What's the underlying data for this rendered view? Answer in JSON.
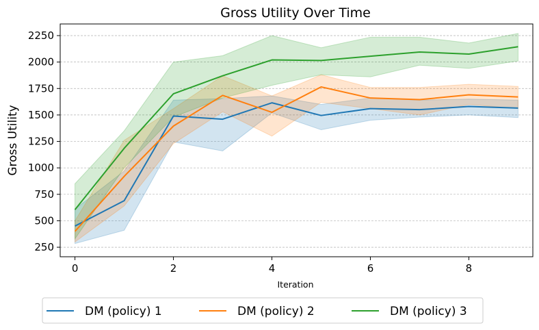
{
  "chart_data": {
    "type": "line",
    "title": "Gross Utility Over Time",
    "xlabel": "Iteration",
    "ylabel": "Gross Utility",
    "x": [
      0,
      1,
      2,
      3,
      4,
      5,
      6,
      7,
      8,
      9
    ],
    "xlim": [
      -0.3,
      9.3
    ],
    "ylim": [
      160,
      2360
    ],
    "xticks": [
      0,
      2,
      4,
      6,
      8
    ],
    "yticks": [
      250,
      500,
      750,
      1000,
      1250,
      1500,
      1750,
      2000,
      2250
    ],
    "grid": "horizontal dashed",
    "legend_placement": "bottom-center",
    "series": [
      {
        "name": "DM (policy) 1",
        "color": "#1f77b4",
        "values": [
          450,
          690,
          1490,
          1460,
          1615,
          1495,
          1560,
          1550,
          1580,
          1565
        ],
        "lower": [
          285,
          410,
          1245,
          1160,
          1520,
          1360,
          1450,
          1480,
          1500,
          1475
        ],
        "upper": [
          610,
          970,
          1640,
          1655,
          1680,
          1600,
          1660,
          1640,
          1650,
          1640
        ]
      },
      {
        "name": "DM (policy) 2",
        "color": "#ff7f0e",
        "values": [
          400,
          920,
          1395,
          1685,
          1525,
          1765,
          1660,
          1645,
          1690,
          1670
        ],
        "lower": [
          300,
          640,
          1230,
          1530,
          1300,
          1620,
          1560,
          1500,
          1600,
          1560
        ],
        "upper": [
          500,
          1260,
          1560,
          1870,
          1680,
          1880,
          1760,
          1760,
          1790,
          1770
        ]
      },
      {
        "name": "DM (policy) 3",
        "color": "#2ca02c",
        "values": [
          605,
          1185,
          1700,
          1870,
          2020,
          2015,
          2055,
          2095,
          2075,
          2145
        ],
        "lower": [
          330,
          1000,
          1480,
          1660,
          1780,
          1880,
          1860,
          1970,
          1940,
          2010
        ],
        "upper": [
          850,
          1350,
          2000,
          2060,
          2250,
          2135,
          2235,
          2235,
          2180,
          2270
        ]
      }
    ]
  }
}
